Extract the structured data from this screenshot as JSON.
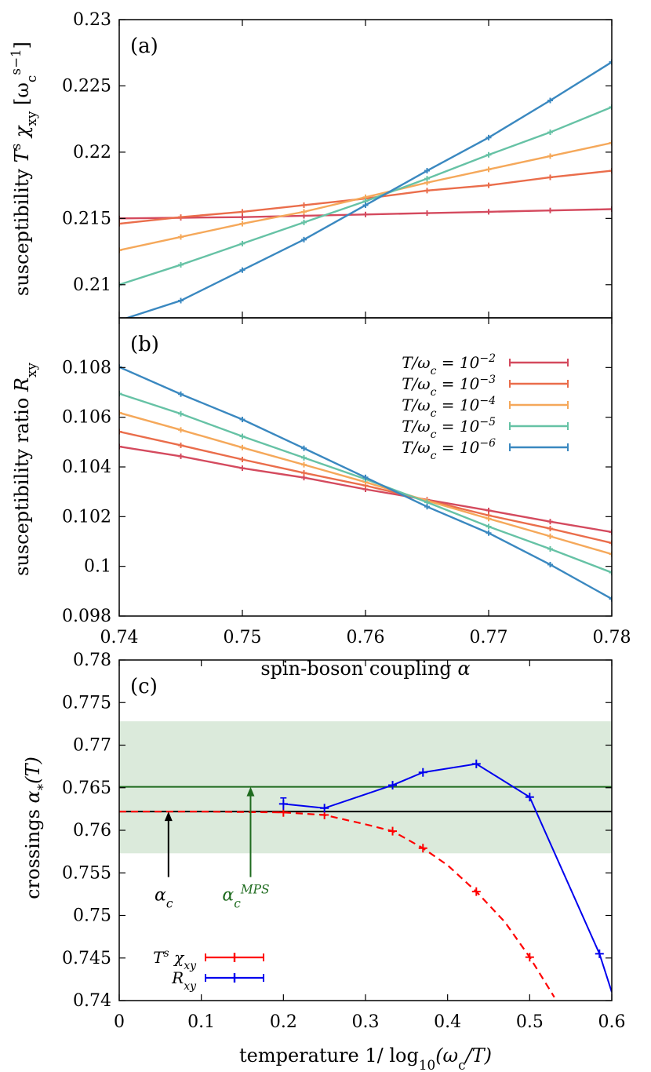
{
  "chart_data": [
    {
      "panel": "(a)",
      "type": "line",
      "ylabel": "susceptibility T^s χ_xy [ω_c^{s−1}]",
      "ylabel_plain": "susceptibility",
      "ylabel_math": "T",
      "ylabel_sup": "s",
      "ylabel_chi": "χ",
      "ylabel_sub": "xy",
      "ylabel_unit": "[ω",
      "ylabel_unit_sub": "c",
      "ylabel_unit_sup": "s−1",
      "ylabel_close": "]",
      "xlim": [
        0.74,
        0.78
      ],
      "ylim": [
        0.2075,
        0.23
      ],
      "yticks": [
        "0.21",
        "0.215",
        "0.22",
        "0.225",
        "0.23"
      ],
      "ytick_values": [
        0.21,
        0.215,
        0.22,
        0.225,
        0.23
      ],
      "x": [
        0.74,
        0.745,
        0.75,
        0.755,
        0.76,
        0.765,
        0.77,
        0.775,
        0.78
      ],
      "series": [
        {
          "name": "T/ω_c = 10^−2",
          "color": "#d44a5e",
          "values": [
            0.215,
            0.21505,
            0.2151,
            0.2152,
            0.2153,
            0.2154,
            0.2155,
            0.2156,
            0.2157
          ]
        },
        {
          "name": "T/ω_c = 10^−3",
          "color": "#ea6d4b",
          "values": [
            0.2146,
            0.2151,
            0.2155,
            0.216,
            0.2165,
            0.2171,
            0.2175,
            0.2181,
            0.2186
          ]
        },
        {
          "name": "T/ω_c = 10^−4",
          "color": "#f5a85a",
          "values": [
            0.2126,
            0.2136,
            0.2146,
            0.2155,
            0.2166,
            0.2177,
            0.2187,
            0.2197,
            0.2207
          ]
        },
        {
          "name": "T/ω_c = 10^−5",
          "color": "#66c2a5",
          "values": [
            0.21,
            0.2115,
            0.2131,
            0.2147,
            0.2163,
            0.218,
            0.2198,
            0.2215,
            0.2234
          ]
        },
        {
          "name": "T/ω_c = 10^−6",
          "color": "#3a88c0",
          "values": [
            0.2073,
            0.2088,
            0.2111,
            0.2134,
            0.216,
            0.2186,
            0.2211,
            0.2239,
            0.2268
          ]
        }
      ]
    },
    {
      "panel": "(b)",
      "type": "line",
      "ylabel": "susceptibility ratio R_xy",
      "ylabel_plain": "susceptibility ratio",
      "ylabel_math": "R",
      "ylabel_sub": "xy",
      "xlabel": "spin-boson coupling α",
      "xlabel_plain": "spin-boson coupling",
      "xlabel_math": "α",
      "xlim": [
        0.74,
        0.78
      ],
      "ylim": [
        0.098,
        0.11
      ],
      "xticks": [
        "0.74",
        "0.75",
        "0.76",
        "0.77",
        "0.78"
      ],
      "xtick_values": [
        0.74,
        0.75,
        0.76,
        0.77,
        0.78
      ],
      "yticks": [
        "0.098",
        "0.1",
        "0.102",
        "0.104",
        "0.106",
        "0.108"
      ],
      "ytick_values": [
        0.098,
        0.1,
        0.102,
        0.104,
        0.106,
        0.108
      ],
      "x": [
        0.74,
        0.745,
        0.75,
        0.755,
        0.76,
        0.765,
        0.77,
        0.775,
        0.78
      ],
      "legend_placement": "top-right",
      "legend": [
        {
          "label": "T/ω",
          "sub": "c",
          "eq": " = 10",
          "sup": "−2"
        },
        {
          "label": "T/ω",
          "sub": "c",
          "eq": " = 10",
          "sup": "−3"
        },
        {
          "label": "T/ω",
          "sub": "c",
          "eq": " = 10",
          "sup": "−4"
        },
        {
          "label": "T/ω",
          "sub": "c",
          "eq": " = 10",
          "sup": "−5"
        },
        {
          "label": "T/ω",
          "sub": "c",
          "eq": " = 10",
          "sup": "−6"
        }
      ],
      "series": [
        {
          "name": "T/ω_c = 10^−2",
          "color": "#d44a5e",
          "values": [
            0.10482,
            0.10443,
            0.10395,
            0.10357,
            0.1031,
            0.10268,
            0.10225,
            0.1018,
            0.10138
          ]
        },
        {
          "name": "T/ω_c = 10^−3",
          "color": "#ea6d4b",
          "values": [
            0.10542,
            0.10487,
            0.1043,
            0.10376,
            0.10325,
            0.10266,
            0.10205,
            0.10152,
            0.10094
          ]
        },
        {
          "name": "T/ω_c = 10^−4",
          "color": "#f5a85a",
          "values": [
            0.10618,
            0.10549,
            0.10478,
            0.10409,
            0.10339,
            0.10264,
            0.10192,
            0.10121,
            0.10049
          ]
        },
        {
          "name": "T/ω_c = 10^−5",
          "color": "#66c2a5",
          "values": [
            0.10695,
            0.10614,
            0.10523,
            0.10437,
            0.10351,
            0.10258,
            0.1016,
            0.1007,
            0.09975
          ]
        },
        {
          "name": "T/ω_c = 10^−6",
          "color": "#3a88c0",
          "values": [
            0.10802,
            0.10693,
            0.10591,
            0.10475,
            0.10358,
            0.1024,
            0.10134,
            0.10007,
            0.09869
          ]
        }
      ]
    },
    {
      "panel": "(c)",
      "type": "line",
      "ylabel": "crossings α_*(T)",
      "ylabel_plain": "crossings",
      "ylabel_math": "α",
      "ylabel_sub": "*",
      "ylabel_arg": "(T)",
      "xlabel": "temperature 1/ log10(ωc/T)",
      "xlabel_plain": "temperature",
      "xlabel_math": "1/ log",
      "xlabel_sub": "10",
      "xlabel_rest": "(ω",
      "xlabel_sub2": "c",
      "xlabel_end": "/T)",
      "xlim": [
        0,
        0.6
      ],
      "ylim": [
        0.74,
        0.78
      ],
      "xticks": [
        "0",
        "0.1",
        "0.2",
        "0.3",
        "0.4",
        "0.5",
        "0.6"
      ],
      "xtick_values": [
        0,
        0.1,
        0.2,
        0.3,
        0.4,
        0.5,
        0.6
      ],
      "yticks": [
        "0.74",
        "0.745",
        "0.75",
        "0.755",
        "0.76",
        "0.765",
        "0.77",
        "0.775",
        "0.78"
      ],
      "ytick_values": [
        0.74,
        0.745,
        0.75,
        0.755,
        0.76,
        0.765,
        0.77,
        0.775,
        0.78
      ],
      "band": {
        "y": [
          0.7573,
          0.7728
        ],
        "color": "#dbeadb"
      },
      "hlines": [
        {
          "y": 0.7651,
          "color": "#1e6b1e"
        },
        {
          "y": 0.7622,
          "color": "#000000"
        }
      ],
      "annotations": [
        {
          "text": "α",
          "sub": "c",
          "x": 0.06,
          "color": "#000000"
        },
        {
          "text": "α",
          "sub": "c",
          "sup": "MPS",
          "x": 0.16,
          "color": "#1e6b1e"
        }
      ],
      "legend_placement": "bottom-left",
      "legend": [
        {
          "label": "T",
          "sup": "s",
          "chi": "χ",
          "sub": "xy",
          "color": "#ff0000"
        },
        {
          "label": "R",
          "sub": "xy",
          "color": "#0000ee"
        }
      ],
      "series": [
        {
          "name": "T^s χ_xy",
          "color": "#ff0000",
          "dashed": true,
          "x": [
            0.2,
            0.25,
            0.333,
            0.37,
            0.435,
            0.5
          ],
          "values": [
            0.7621,
            0.7618,
            0.7599,
            0.7579,
            0.7528,
            0.7451
          ],
          "curve_x": [
            0.0,
            0.1,
            0.2,
            0.25,
            0.3,
            0.333,
            0.37,
            0.4,
            0.435,
            0.47,
            0.5,
            0.53
          ],
          "curve_y": [
            0.7622,
            0.7622,
            0.7621,
            0.7618,
            0.7607,
            0.7599,
            0.7579,
            0.7559,
            0.7528,
            0.7492,
            0.7451,
            0.7404
          ]
        },
        {
          "name": "R_xy",
          "color": "#0000ee",
          "dashed": false,
          "x": [
            0.2,
            0.25,
            0.333,
            0.37,
            0.435,
            0.5,
            0.585,
            0.6
          ],
          "values": [
            0.7631,
            0.7626,
            0.7653,
            0.7668,
            0.7678,
            0.7639,
            0.7455,
            0.741
          ]
        }
      ]
    }
  ]
}
